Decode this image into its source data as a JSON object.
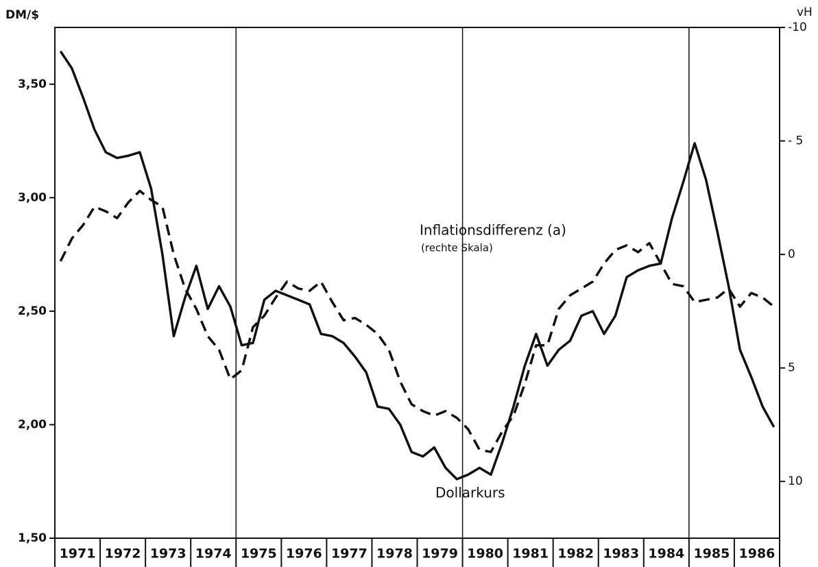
{
  "chart_data": {
    "type": "line",
    "y_label": "DM/$",
    "y2_label": "vH",
    "annotations": [
      "Inflationsdifferenz (a)",
      "(rechte Skala)",
      "Dollarkurs"
    ],
    "categories": [
      "1971",
      "1972",
      "1973",
      "1974",
      "1975",
      "1976",
      "1977",
      "1978",
      "1979",
      "1980",
      "1981",
      "1982",
      "1983",
      "1984",
      "1985",
      "1986"
    ],
    "xlim": [
      1971,
      1987
    ],
    "xticks": [
      1971,
      1972,
      1973,
      1974,
      1975,
      1976,
      1977,
      1978,
      1979,
      1980,
      1981,
      1982,
      1983,
      1984,
      1985,
      1986,
      1987
    ],
    "vgrid": [
      1975,
      1980,
      1985
    ],
    "x": [
      1971.125,
      1971.375,
      1971.625,
      1971.875,
      1972.125,
      1972.375,
      1972.625,
      1972.875,
      1973.125,
      1973.375,
      1973.625,
      1973.875,
      1974.125,
      1974.375,
      1974.625,
      1974.875,
      1975.125,
      1975.375,
      1975.625,
      1975.875,
      1976.125,
      1976.375,
      1976.625,
      1976.875,
      1977.125,
      1977.375,
      1977.625,
      1977.875,
      1978.125,
      1978.375,
      1978.625,
      1978.875,
      1979.125,
      1979.375,
      1979.625,
      1979.875,
      1980.125,
      1980.375,
      1980.625,
      1980.875,
      1981.125,
      1981.375,
      1981.625,
      1981.875,
      1982.125,
      1982.375,
      1982.625,
      1982.875,
      1983.125,
      1983.375,
      1983.625,
      1983.875,
      1984.125,
      1984.375,
      1984.625,
      1984.875,
      1985.125,
      1985.375,
      1985.625,
      1985.875,
      1986.125,
      1986.375,
      1986.625,
      1986.875
    ],
    "ylim": [
      1.5,
      3.75
    ],
    "yticks": [
      {
        "value": 1.5,
        "label": "1,50"
      },
      {
        "value": 2.0,
        "label": "2,00"
      },
      {
        "value": 2.5,
        "label": "2,50"
      },
      {
        "value": 3.0,
        "label": "3,00"
      },
      {
        "value": 3.5,
        "label": "3,50"
      }
    ],
    "y2lim": [
      -10,
      12.5
    ],
    "y2_inverted": true,
    "y2ticks": [
      -10,
      {
        "value": -5,
        "label": "- 5"
      },
      0,
      5,
      10
    ],
    "series": [
      {
        "name": "Dollarkurs",
        "color": "#111111",
        "dashed": false,
        "values": [
          3.645,
          3.57,
          3.44,
          3.3,
          3.2,
          3.175,
          3.185,
          3.2,
          3.04,
          2.75,
          2.39,
          2.56,
          2.7,
          2.51,
          2.61,
          2.52,
          2.35,
          2.36,
          2.55,
          2.59,
          2.57,
          2.55,
          2.53,
          2.4,
          2.39,
          2.36,
          2.3,
          2.23,
          2.08,
          2.07,
          2.0,
          1.88,
          1.86,
          1.9,
          1.81,
          1.76,
          1.78,
          1.81,
          1.78,
          1.92,
          2.08,
          2.26,
          2.4,
          2.26,
          2.33,
          2.37,
          2.48,
          2.5,
          2.4,
          2.48,
          2.65,
          2.68,
          2.7,
          2.71,
          2.91,
          3.07,
          3.24,
          3.08,
          2.85,
          2.61,
          2.33,
          2.21,
          2.08,
          1.99
        ]
      },
      {
        "name": "Inflationsdifferenz (a)",
        "color": "#111111",
        "dashed": true,
        "axis": "y2",
        "values": [
          0.3,
          -0.7,
          -1.3,
          -2.1,
          -1.9,
          -1.6,
          -2.3,
          -2.8,
          -2.4,
          -2.1,
          0,
          1.5,
          2.4,
          3.6,
          4.2,
          5.5,
          5.1,
          3.2,
          2.7,
          1.9,
          1.2,
          1.5,
          1.6,
          1.2,
          2.1,
          2.9,
          2.8,
          3.1,
          3.5,
          4.2,
          5.6,
          6.6,
          6.9,
          7.1,
          6.9,
          7.2,
          7.7,
          8.6,
          8.7,
          7.8,
          7.1,
          5.7,
          4.0,
          4.0,
          2.4,
          1.8,
          1.5,
          1.2,
          0.4,
          -0.2,
          -0.4,
          -0.1,
          -0.5,
          0.4,
          1.3,
          1.4,
          2.1,
          2.0,
          1.9,
          1.5,
          2.3,
          1.7,
          1.9,
          2.3
        ]
      }
    ]
  }
}
